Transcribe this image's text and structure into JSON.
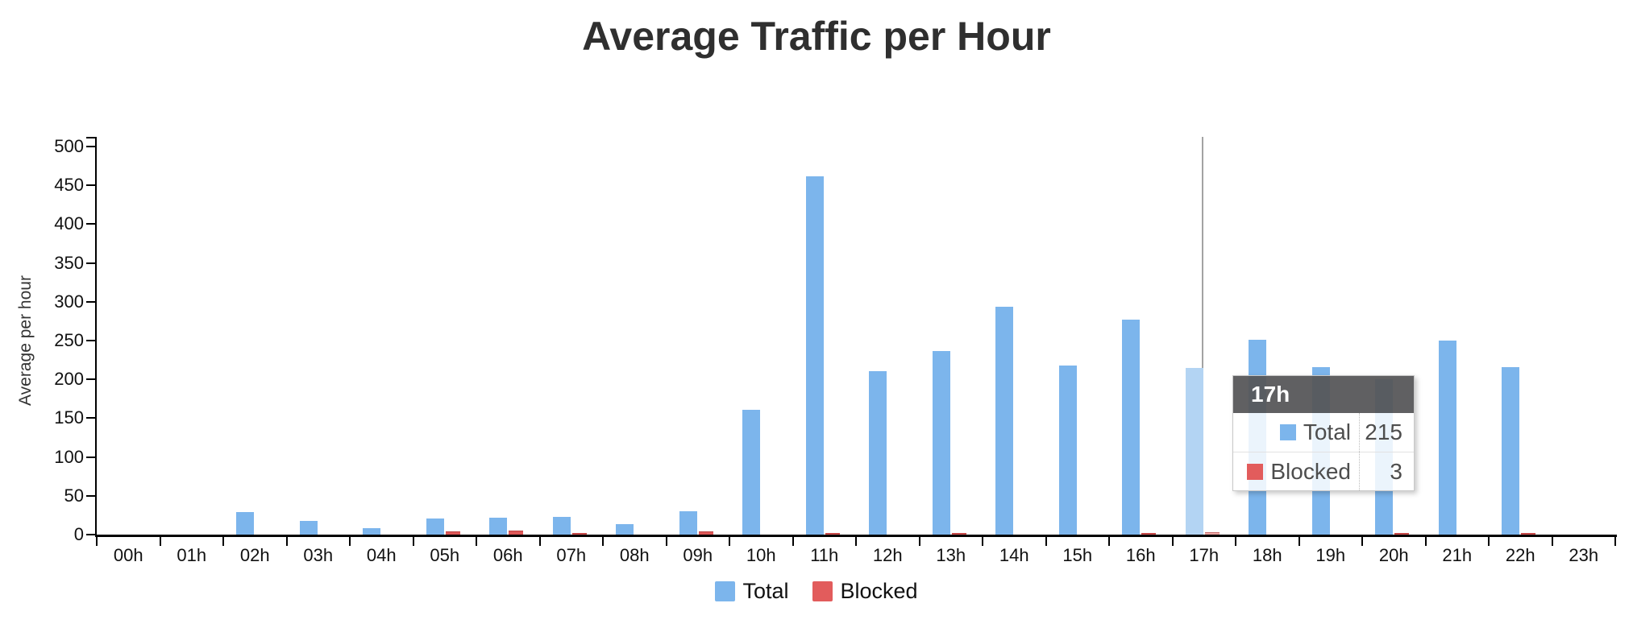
{
  "page": {
    "background": "#ffffff"
  },
  "chart_data": {
    "type": "bar",
    "title": "Average Traffic per Hour",
    "xlabel": "",
    "ylabel": "Average per hour",
    "categories": [
      "00h",
      "01h",
      "02h",
      "03h",
      "04h",
      "05h",
      "06h",
      "07h",
      "08h",
      "09h",
      "10h",
      "11h",
      "12h",
      "13h",
      "14h",
      "15h",
      "16h",
      "17h",
      "18h",
      "19h",
      "20h",
      "21h",
      "22h",
      "23h"
    ],
    "series": [
      {
        "name": "Total",
        "color": "#7cb5ec",
        "hover_color": "#b3d4f3",
        "values": [
          0,
          0,
          29,
          18,
          8,
          21,
          22,
          23,
          14,
          30,
          161,
          462,
          211,
          236,
          294,
          218,
          277,
          215,
          251,
          216,
          200,
          250,
          216,
          0
        ]
      },
      {
        "name": "Blocked",
        "color": "#dc5757",
        "hover_color": "#eca5a3",
        "values": [
          0,
          0,
          0,
          0,
          0,
          4,
          5,
          2,
          0,
          4,
          0,
          2,
          0,
          2,
          0,
          0,
          2,
          3,
          0,
          0,
          2,
          0,
          2,
          0
        ]
      }
    ],
    "ylim": [
      0,
      500
    ],
    "ytick_step": 50,
    "yticks": [
      0,
      50,
      100,
      150,
      200,
      250,
      300,
      350,
      400,
      450,
      500
    ],
    "grid": false,
    "legend_position": "bottom",
    "hover": {
      "category": "17h",
      "category_index": 17,
      "crosshair_color": "#a3a3a3"
    }
  },
  "legend": {
    "items": [
      {
        "label": "Total",
        "color": "#7cb5ec"
      },
      {
        "label": "Blocked",
        "color": "#e25c5c"
      }
    ]
  },
  "tooltip": {
    "title": "17h",
    "rows": [
      {
        "label": "Total",
        "value": "215",
        "color": "#7cb5ec"
      },
      {
        "label": "Blocked",
        "value": "3",
        "color": "#e25c5c"
      }
    ]
  }
}
